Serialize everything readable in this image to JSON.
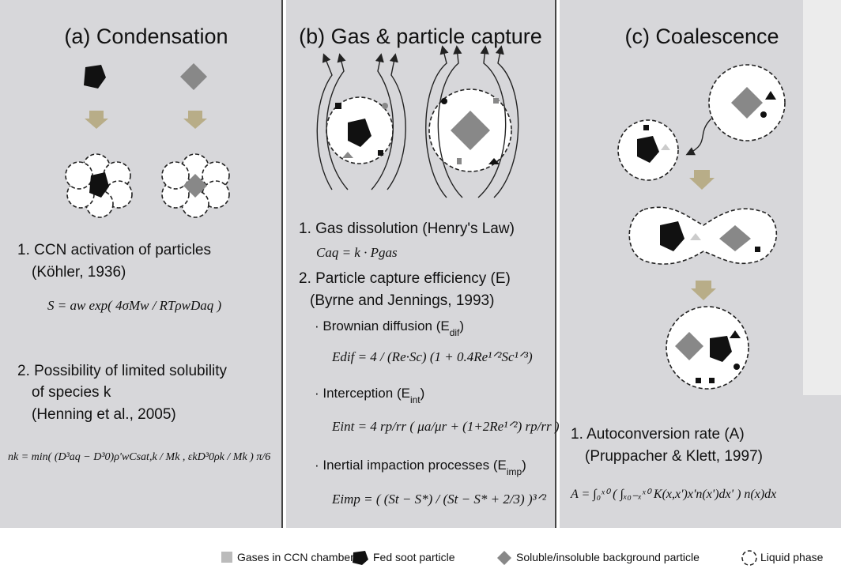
{
  "panels": [
    {
      "title": "(a) Condensation",
      "lines": [
        "1. CCN activation of particles",
        "(Köhler, 1936)",
        "2. Possibility of limited solubility",
        "of species k",
        "(Henning et al., 2005)"
      ],
      "equations": [
        "S = aw exp( 4σMw / RTρwDaq )",
        "nk = min( (D³aq − D³0)ρ'wCsat,k / Mk , εkD³0ρk / Mk ) π/6"
      ]
    },
    {
      "title": "(b) Gas & particle capture",
      "lines": [
        "1. Gas dissolution (Henry's Law)",
        "2. Particle capture efficiency (E)",
        "(Byrne and Jennings, 1993)"
      ],
      "terms": [
        {
          "text": "· Brownian diffusion (E",
          "sub": "dif",
          "end": ")"
        },
        {
          "text": "· Interception (E",
          "sub": "int",
          "end": ")"
        },
        {
          "text": "· Inertial impaction processes (E",
          "sub": "imp",
          "end": ")"
        }
      ],
      "equations": [
        "Caq = k · Pgas",
        "Edif = 4 / (Re·Sc) (1 + 0.4Re¹ᐟ²Sc¹ᐟ³)",
        "Eint = 4 rp/rr ( μa/μr + (1+2Re¹ᐟ²) rp/rr )",
        "Eimp = ( (St − S*) / (St − S* + 2/3) )³ᐟ²"
      ]
    },
    {
      "title": "(c) Coalescence",
      "lines": [
        "1. Autoconversion rate (A)",
        "(Pruppacher & Klett, 1997)"
      ],
      "equations": [
        "A = ∫₀ˣ⁰ ( ∫ₓ₀₋ₓˣ⁰ K(x,x')x'n(x')dx' ) n(x)dx"
      ]
    }
  ],
  "legend": [
    "Gases in CCN chamber",
    "Fed soot particle",
    "Soluble/insoluble background particle",
    "Liquid phase"
  ]
}
